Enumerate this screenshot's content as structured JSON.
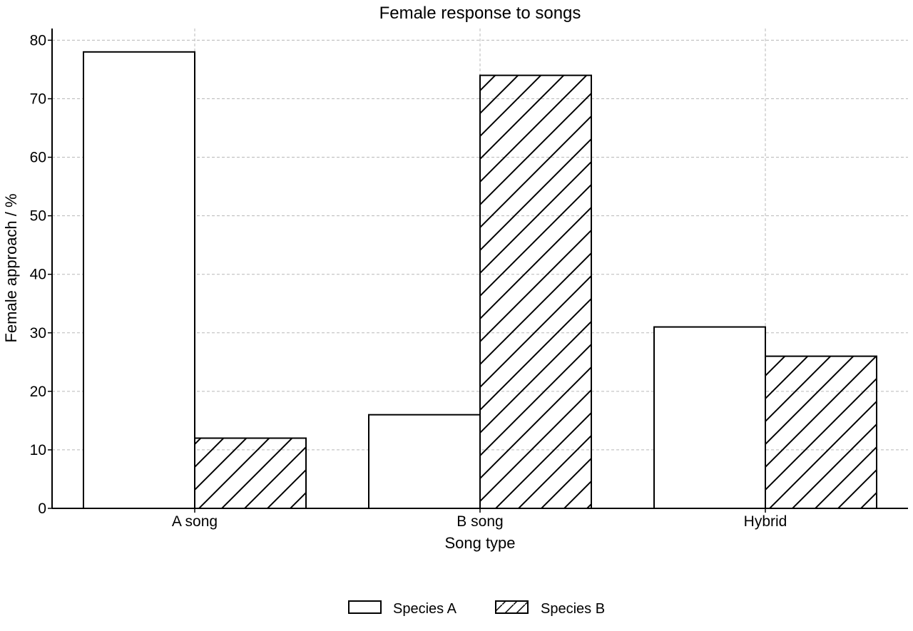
{
  "chart_data": {
    "type": "bar",
    "title": "Female response to songs",
    "xlabel": "Song type",
    "ylabel": "Female approach / %",
    "categories": [
      "A song",
      "B song",
      "Hybrid"
    ],
    "series": [
      {
        "name": "Species A",
        "values": [
          78,
          16,
          31
        ],
        "pattern": "none"
      },
      {
        "name": "Species B",
        "values": [
          12,
          74,
          26
        ],
        "pattern": "diagonal-hatch"
      }
    ],
    "ylim": [
      0,
      82
    ],
    "yticks": [
      0,
      10,
      20,
      30,
      40,
      50,
      60,
      70,
      80
    ],
    "grid": true,
    "legend_position": "bottom-center",
    "colors": {
      "fill": "#ffffff",
      "stroke": "#000000",
      "grid": "#b8b8b8"
    }
  }
}
